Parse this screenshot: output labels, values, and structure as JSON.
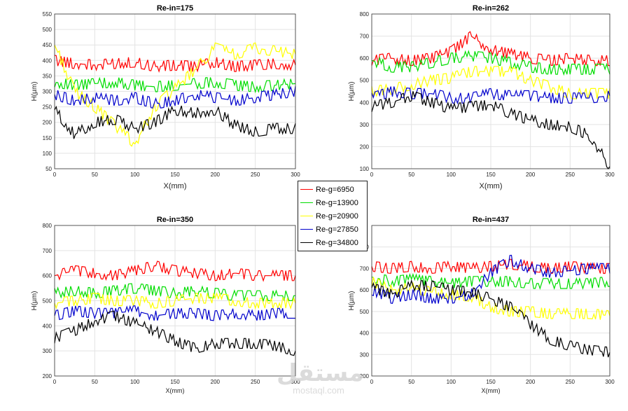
{
  "legend": [
    {
      "label": "Re-g=6950",
      "color": "#ff0000"
    },
    {
      "label": "Re-g=13900",
      "color": "#00dd00"
    },
    {
      "label": "Re-g=20900",
      "color": "#ffff00"
    },
    {
      "label": "Re-g=27850",
      "color": "#0000cc"
    },
    {
      "label": "Re-g=34800",
      "color": "#000000"
    }
  ],
  "watermark": {
    "arabic": "مستقل",
    "latin": "mostaql.com"
  },
  "chart_data": [
    {
      "type": "line",
      "title": "Re-in=175",
      "xlabel": "X(mm)",
      "ylabel": "H(µm)",
      "xlim": [
        0,
        300
      ],
      "ylim": [
        50,
        550
      ],
      "xticks": [
        0,
        50,
        100,
        150,
        200,
        250,
        300
      ],
      "yticks": [
        50,
        100,
        150,
        200,
        250,
        300,
        350,
        400,
        450,
        500,
        550
      ],
      "grid": true,
      "x": [
        0,
        25,
        50,
        75,
        100,
        125,
        150,
        175,
        200,
        225,
        250,
        275,
        300
      ],
      "series": [
        {
          "name": "Re-g=6950",
          "color": "#ff0000",
          "values": [
            400,
            390,
            385,
            390,
            395,
            380,
            385,
            380,
            395,
            380,
            385,
            390,
            385
          ]
        },
        {
          "name": "Re-g=13900",
          "color": "#00dd00",
          "values": [
            330,
            320,
            325,
            330,
            320,
            315,
            320,
            325,
            330,
            320,
            315,
            320,
            325
          ]
        },
        {
          "name": "Re-g=20900",
          "color": "#ffff00",
          "values": [
            450,
            300,
            250,
            190,
            130,
            250,
            310,
            370,
            440,
            420,
            440,
            430,
            420
          ]
        },
        {
          "name": "Re-g=27850",
          "color": "#0000cc",
          "values": [
            290,
            270,
            280,
            270,
            280,
            260,
            270,
            290,
            280,
            270,
            280,
            290,
            300
          ]
        },
        {
          "name": "Re-g=34800",
          "color": "#000000",
          "values": [
            240,
            160,
            200,
            210,
            180,
            200,
            240,
            230,
            240,
            190,
            170,
            180,
            180
          ]
        }
      ]
    },
    {
      "type": "line",
      "title": "Re-in=262",
      "xlabel": "X(mm)",
      "ylabel": "H(µm)",
      "xlim": [
        0,
        300
      ],
      "ylim": [
        100,
        800
      ],
      "xticks": [
        0,
        50,
        100,
        150,
        200,
        250,
        300
      ],
      "yticks": [
        100,
        200,
        300,
        400,
        500,
        600,
        700,
        800
      ],
      "grid": true,
      "x": [
        0,
        25,
        50,
        75,
        100,
        125,
        150,
        175,
        200,
        225,
        250,
        275,
        300
      ],
      "series": [
        {
          "name": "Re-g=6950",
          "color": "#ff0000",
          "values": [
            590,
            600,
            590,
            600,
            630,
            700,
            640,
            620,
            600,
            590,
            600,
            590,
            590
          ]
        },
        {
          "name": "Re-g=13900",
          "color": "#00dd00",
          "values": [
            590,
            560,
            560,
            580,
            600,
            610,
            600,
            580,
            560,
            550,
            550,
            550,
            550
          ]
        },
        {
          "name": "Re-g=20900",
          "color": "#ffff00",
          "values": [
            450,
            460,
            480,
            500,
            510,
            540,
            540,
            540,
            500,
            470,
            440,
            440,
            440
          ]
        },
        {
          "name": "Re-g=27850",
          "color": "#0000cc",
          "values": [
            420,
            450,
            440,
            440,
            420,
            420,
            440,
            430,
            430,
            420,
            420,
            420,
            430
          ]
        },
        {
          "name": "Re-g=34800",
          "color": "#000000",
          "values": [
            380,
            400,
            430,
            400,
            370,
            380,
            390,
            350,
            320,
            300,
            290,
            250,
            110
          ]
        }
      ]
    },
    {
      "type": "line",
      "title": "Re-in=350",
      "xlabel": "X(mm)",
      "ylabel": "H(µm)",
      "xlim": [
        0,
        300
      ],
      "ylim": [
        200,
        800
      ],
      "xticks": [
        0,
        50,
        100,
        150,
        200,
        250,
        300
      ],
      "yticks": [
        200,
        300,
        400,
        500,
        600,
        700,
        800
      ],
      "grid": true,
      "x": [
        0,
        25,
        50,
        75,
        100,
        125,
        150,
        175,
        200,
        225,
        250,
        275,
        300
      ],
      "series": [
        {
          "name": "Re-g=6950",
          "color": "#ff0000",
          "values": [
            600,
            620,
            610,
            600,
            620,
            640,
            620,
            610,
            600,
            610,
            600,
            600,
            600
          ]
        },
        {
          "name": "Re-g=13900",
          "color": "#00dd00",
          "values": [
            530,
            540,
            530,
            540,
            550,
            540,
            530,
            540,
            530,
            520,
            520,
            520,
            520
          ]
        },
        {
          "name": "Re-g=20900",
          "color": "#ffff00",
          "values": [
            490,
            500,
            510,
            500,
            500,
            490,
            500,
            510,
            510,
            500,
            490,
            490,
            490
          ]
        },
        {
          "name": "Re-g=27850",
          "color": "#0000cc",
          "values": [
            440,
            460,
            450,
            450,
            460,
            440,
            450,
            450,
            440,
            450,
            440,
            450,
            450
          ]
        },
        {
          "name": "Re-g=34800",
          "color": "#000000",
          "values": [
            350,
            380,
            420,
            440,
            410,
            380,
            340,
            310,
            330,
            330,
            330,
            320,
            300
          ]
        }
      ]
    },
    {
      "type": "line",
      "title": "Re-in=437",
      "xlabel": "X(mm)",
      "ylabel": "H(µm)",
      "xlim": [
        0,
        300
      ],
      "ylim": [
        200,
        900
      ],
      "xticks": [
        0,
        50,
        100,
        150,
        200,
        250,
        300
      ],
      "yticks": [
        200,
        300,
        400,
        500,
        600,
        700,
        800
      ],
      "grid": true,
      "x": [
        0,
        25,
        50,
        75,
        100,
        125,
        150,
        175,
        200,
        225,
        250,
        275,
        300
      ],
      "series": [
        {
          "name": "Re-g=6950",
          "color": "#ff0000",
          "values": [
            710,
            700,
            710,
            700,
            710,
            700,
            710,
            720,
            710,
            700,
            710,
            700,
            700
          ]
        },
        {
          "name": "Re-g=13900",
          "color": "#00dd00",
          "values": [
            660,
            640,
            650,
            640,
            630,
            640,
            640,
            640,
            630,
            630,
            630,
            630,
            640
          ]
        },
        {
          "name": "Re-g=20900",
          "color": "#ffff00",
          "values": [
            640,
            600,
            610,
            590,
            580,
            570,
            520,
            500,
            500,
            490,
            490,
            490,
            480
          ]
        },
        {
          "name": "Re-g=27850",
          "color": "#0000cc",
          "values": [
            600,
            560,
            580,
            560,
            560,
            580,
            680,
            740,
            700,
            680,
            690,
            700,
            700
          ]
        },
        {
          "name": "Re-g=34800",
          "color": "#000000",
          "values": [
            610,
            580,
            620,
            620,
            600,
            590,
            560,
            520,
            440,
            370,
            340,
            320,
            310
          ]
        }
      ]
    }
  ]
}
